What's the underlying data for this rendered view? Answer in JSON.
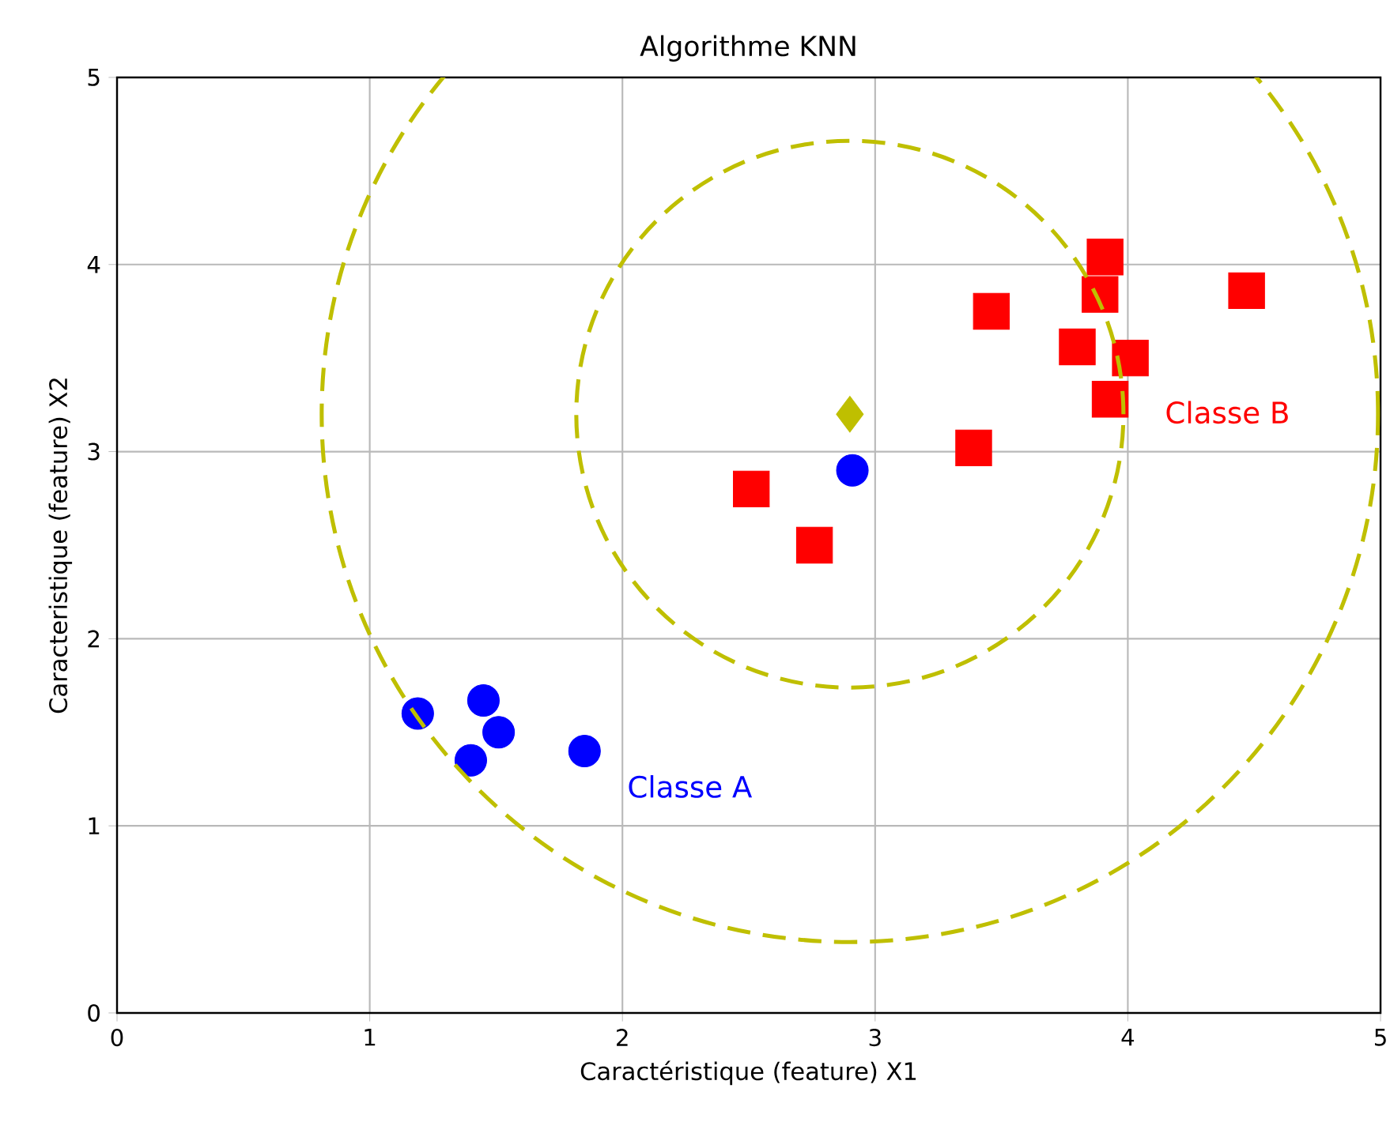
{
  "chart_data": {
    "type": "scatter",
    "title": "Algorithme KNN",
    "xlabel": "Caractéristique (feature) X1",
    "ylabel": "Caracteristique (feature) X2",
    "xlim": [
      0,
      5
    ],
    "ylim": [
      0,
      5
    ],
    "xticks": [
      0,
      1,
      2,
      3,
      4,
      5
    ],
    "yticks": [
      0,
      1,
      2,
      3,
      4,
      5
    ],
    "grid": true,
    "series": [
      {
        "marker": "circle",
        "color": "#0000ff",
        "x": [
          1.19,
          1.45,
          1.4,
          1.51,
          1.85,
          2.91
        ],
        "values": [
          1.6,
          1.67,
          1.35,
          1.5,
          1.4,
          2.9
        ]
      },
      {
        "marker": "square",
        "color": "#ff0000",
        "x": [
          2.51,
          2.76,
          3.39,
          3.46,
          3.8,
          3.91,
          3.89,
          4.01,
          3.93,
          4.47
        ],
        "values": [
          2.8,
          2.5,
          3.02,
          3.75,
          3.56,
          4.04,
          3.84,
          3.5,
          3.28,
          3.86
        ]
      },
      {
        "marker": "diamond",
        "color": "#bfbf00",
        "x": [
          2.9
        ],
        "values": [
          3.2
        ]
      }
    ],
    "annotations": [
      "Classe A",
      "Classe B"
    ]
  }
}
